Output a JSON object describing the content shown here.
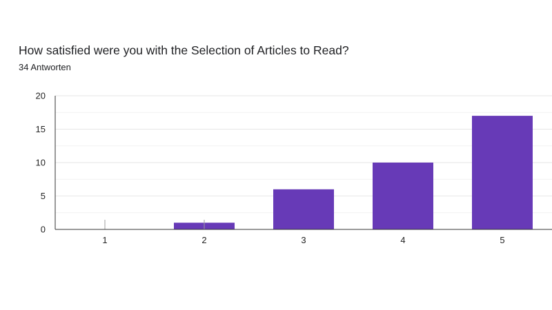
{
  "question": {
    "title": "How satisfied were you with the Selection of Articles to Read?",
    "response_count": "34 Antworten"
  },
  "colors": {
    "bar": "#673ab7",
    "grid": "#e6e6e6",
    "axis": "#333333",
    "text": "#202124"
  },
  "chart_data": {
    "type": "bar",
    "categories": [
      "1",
      "2",
      "3",
      "4",
      "5"
    ],
    "values": [
      0,
      1,
      6,
      10,
      17
    ],
    "ylim": [
      0,
      20
    ],
    "yticks": [
      0,
      5,
      10,
      15,
      20
    ],
    "grid": true,
    "legend": "none"
  }
}
